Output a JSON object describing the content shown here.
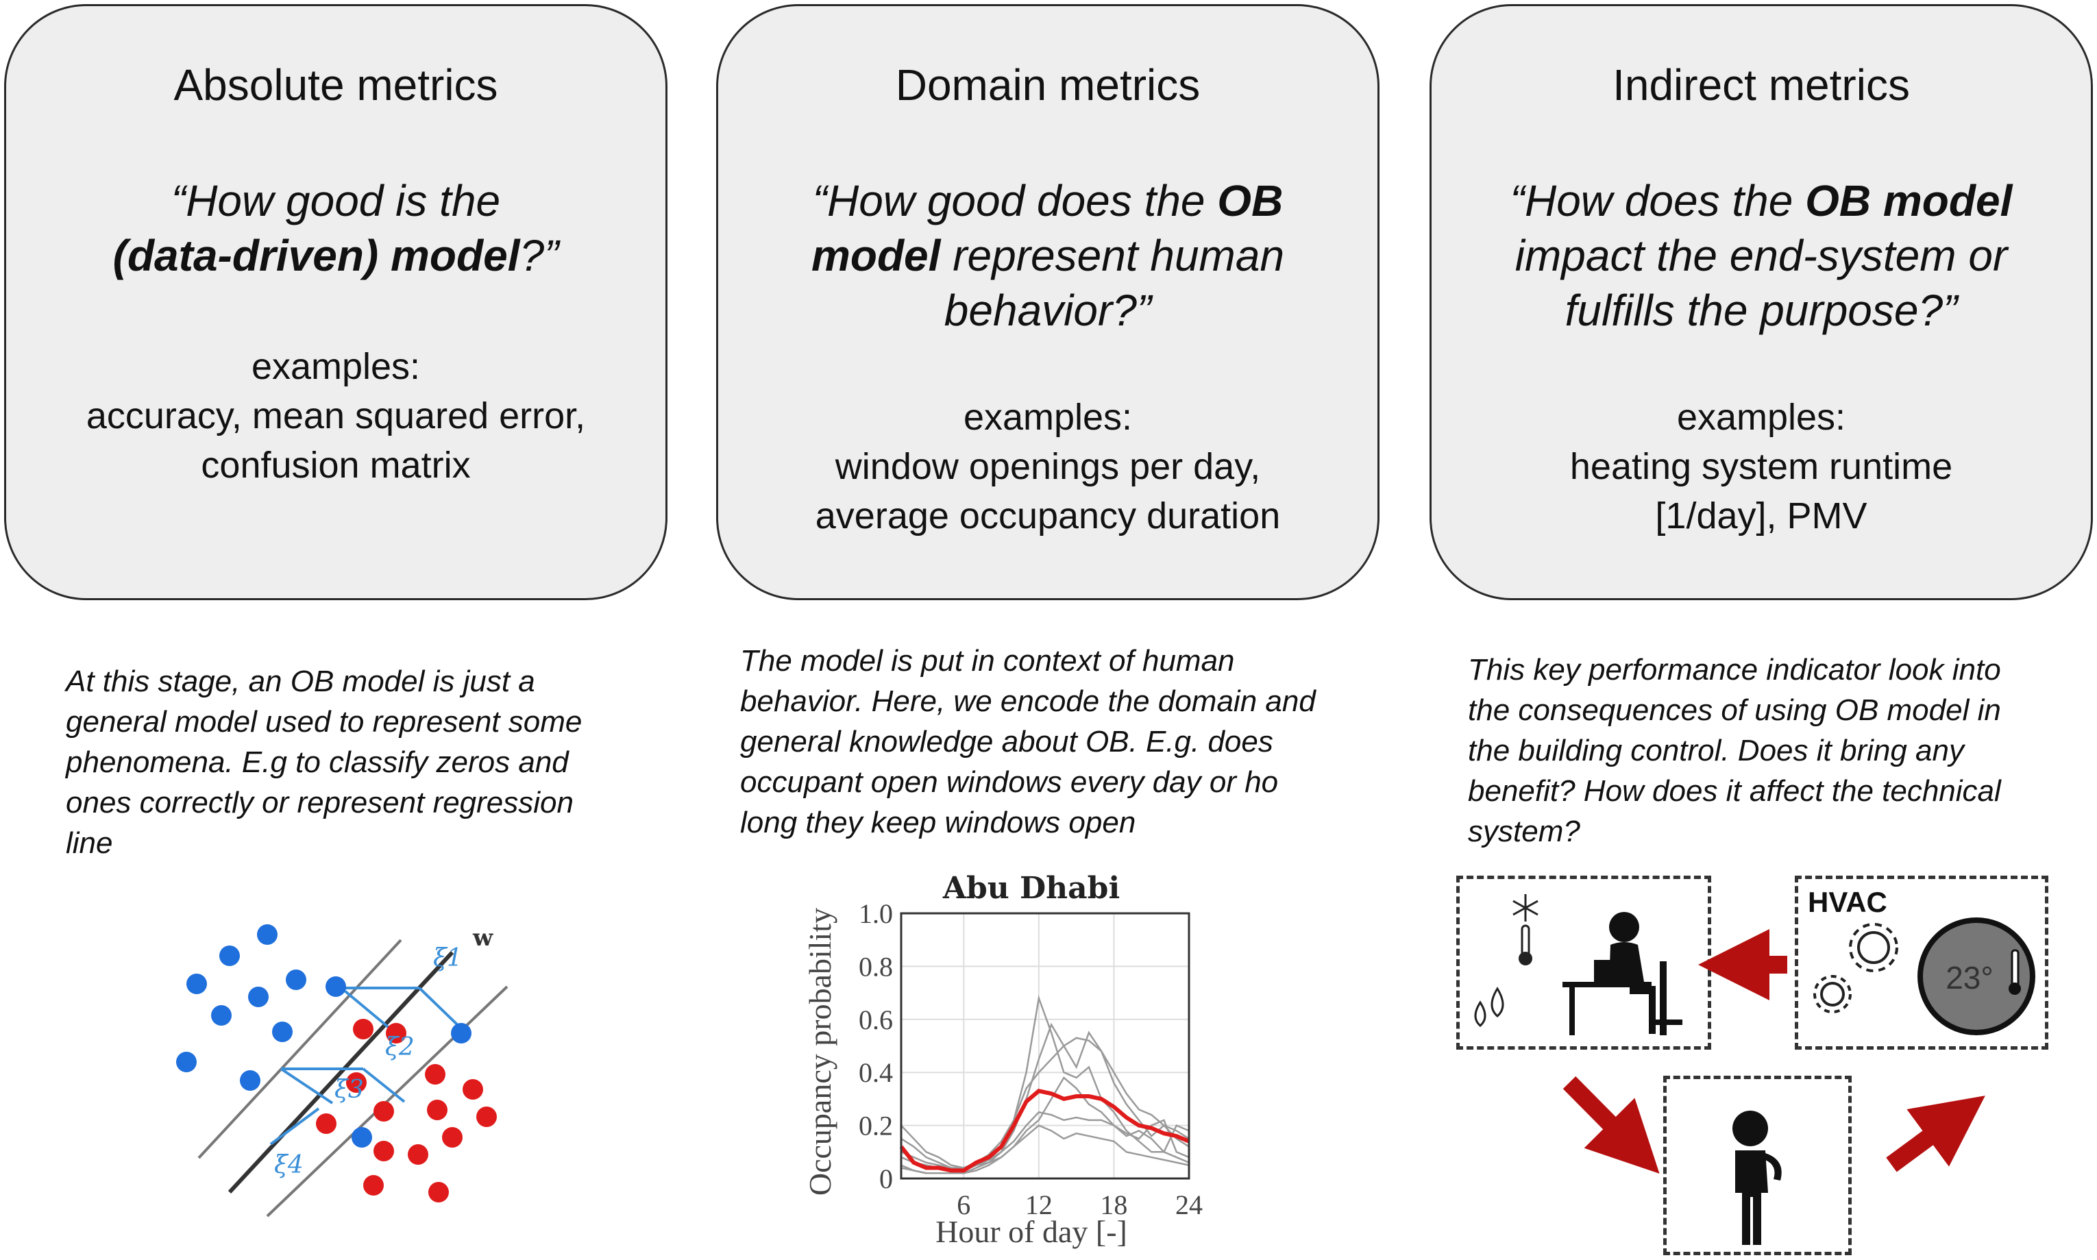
{
  "cards": [
    {
      "title": "Absolute metrics",
      "question_lines": [
        [
          "“How good is the",
          ""
        ],
        [
          "",
          "(data-driven) model",
          "?”"
        ]
      ],
      "q1": "“How good is the",
      "q2_bold": "(data-driven) model",
      "q2_tail": "?”",
      "examples_label": "examples:",
      "examples_lines": [
        "accuracy, mean squared error,",
        "confusion matrix"
      ]
    },
    {
      "title": "Domain metrics",
      "q1_pre": "“How good does the ",
      "q1_bold": "OB",
      "q2_bold": "model",
      "q2_tail": " represent human",
      "q3": "behavior?”",
      "examples_label": "examples:",
      "examples_lines": [
        "window openings per day,",
        "average occupancy duration"
      ]
    },
    {
      "title": "Indirect metrics",
      "q1_pre": "“How does the ",
      "q1_bold": "OB model",
      "q2": "impact the end-system or",
      "q3": "fulfills the purpose?”",
      "examples_label": "examples:",
      "examples_lines": [
        "heating system runtime",
        "[1/day], PMV"
      ]
    }
  ],
  "descriptions": [
    [
      "At this stage, an OB model is just a",
      "general model used to represent some",
      "phenomena. E.g to classify zeros and",
      "ones correctly or represent regression",
      "line"
    ],
    [
      "The model is put in context of human",
      "behavior. Here, we encode the domain and",
      "general knowledge about OB. E.g. does",
      "occupant open windows every day or ho",
      "long they keep windows open"
    ],
    [
      "This key performance indicator look into",
      "the consequences of using OB model in",
      "the building control. Does it bring any",
      "benefit? How does it affect the technical",
      "system?"
    ]
  ],
  "svm": {
    "w_label": "w",
    "slack_labels": [
      "ξ1",
      "ξ2",
      "ξ3",
      "ξ4"
    ],
    "blue": "#1f6fdc",
    "red": "#e01b1b"
  },
  "chart_data": {
    "type": "line",
    "title": "Abu Dhabi",
    "xlabel": "Hour of day [-]",
    "ylabel": "Occupancy probability",
    "xlim": [
      1,
      24
    ],
    "ylim": [
      0,
      1.0
    ],
    "xticks": [
      6,
      12,
      18,
      24
    ],
    "yticks": [
      0,
      0.2,
      0.4,
      0.6,
      0.8,
      1.0
    ],
    "ytick_labels": [
      "0",
      "0.2",
      "0.4",
      "0.6",
      "0.8",
      "1.0"
    ],
    "grid": true,
    "x": [
      1,
      2,
      3,
      4,
      5,
      6,
      7,
      8,
      9,
      10,
      11,
      12,
      13,
      14,
      15,
      16,
      17,
      18,
      19,
      20,
      21,
      22,
      23,
      24
    ],
    "highlight_series": {
      "color": "#e01b1b",
      "values": [
        0.12,
        0.06,
        0.04,
        0.04,
        0.03,
        0.03,
        0.06,
        0.08,
        0.12,
        0.2,
        0.29,
        0.33,
        0.32,
        0.3,
        0.31,
        0.31,
        0.3,
        0.27,
        0.23,
        0.2,
        0.19,
        0.17,
        0.16,
        0.14
      ]
    },
    "background_series": [
      [
        0.05,
        0.03,
        0.02,
        0.02,
        0.02,
        0.02,
        0.04,
        0.06,
        0.1,
        0.22,
        0.4,
        0.68,
        0.55,
        0.4,
        0.38,
        0.42,
        0.3,
        0.25,
        0.18,
        0.14,
        0.1,
        0.1,
        0.2,
        0.18
      ],
      [
        0.2,
        0.15,
        0.1,
        0.08,
        0.05,
        0.04,
        0.05,
        0.07,
        0.1,
        0.18,
        0.3,
        0.45,
        0.58,
        0.5,
        0.42,
        0.55,
        0.48,
        0.36,
        0.28,
        0.22,
        0.16,
        0.2,
        0.15,
        0.12
      ],
      [
        0.1,
        0.08,
        0.06,
        0.05,
        0.04,
        0.04,
        0.06,
        0.09,
        0.14,
        0.22,
        0.34,
        0.4,
        0.45,
        0.5,
        0.53,
        0.52,
        0.48,
        0.4,
        0.32,
        0.26,
        0.24,
        0.2,
        0.18,
        0.15
      ],
      [
        0.15,
        0.12,
        0.08,
        0.06,
        0.04,
        0.03,
        0.05,
        0.07,
        0.1,
        0.14,
        0.2,
        0.25,
        0.24,
        0.22,
        0.23,
        0.22,
        0.22,
        0.2,
        0.16,
        0.18,
        0.15,
        0.1,
        0.08,
        0.06
      ],
      [
        0.08,
        0.06,
        0.05,
        0.04,
        0.04,
        0.03,
        0.05,
        0.06,
        0.08,
        0.12,
        0.16,
        0.2,
        0.18,
        0.15,
        0.17,
        0.16,
        0.15,
        0.14,
        0.1,
        0.09,
        0.08,
        0.07,
        0.06,
        0.05
      ],
      [
        0.04,
        0.03,
        0.02,
        0.02,
        0.02,
        0.02,
        0.03,
        0.05,
        0.08,
        0.12,
        0.18,
        0.22,
        0.3,
        0.38,
        0.34,
        0.28,
        0.25,
        0.2,
        0.17,
        0.15,
        0.2,
        0.22,
        0.1,
        0.08
      ]
    ]
  },
  "kpi": {
    "hvac_label": "HVAC",
    "temp_label": "23°",
    "arrow_color": "#b51010"
  }
}
